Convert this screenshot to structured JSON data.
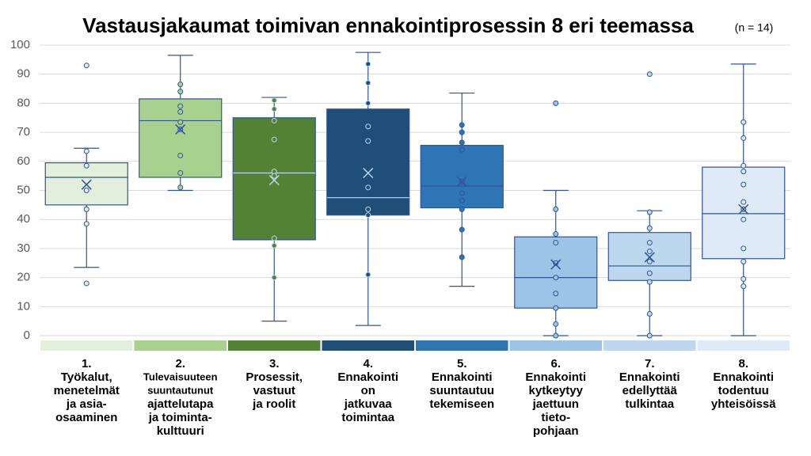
{
  "chart_data": {
    "type": "box",
    "title": "Vastausjakaumat toimivan ennakointiprosessin 8 eri teemassa",
    "subtitle": "(n = 14)",
    "categories": [
      [
        "1.",
        "Työkalut,",
        "menetelmät",
        "ja asia-",
        "osaaminen"
      ],
      [
        "2.",
        "Tulevaisuuteen",
        "suuntautunut",
        "ajattelutapa",
        "ja toiminta-",
        "kulttuuri"
      ],
      [
        "3.",
        "Prosessit,",
        "vastuut",
        "ja roolit"
      ],
      [
        "4.",
        "Ennakointi",
        "on",
        "jatkuvaa",
        "toimintaa"
      ],
      [
        "5.",
        "Ennakointi",
        "suuntautuu",
        "tekemiseen"
      ],
      [
        "6.",
        "Ennakointi",
        "kytkeytyy",
        "jaettuun",
        "tieto-",
        "pohjaan"
      ],
      [
        "7.",
        "Ennakointi",
        "edellyttää",
        "tulkintaa"
      ],
      [
        "8.",
        "Ennakointi",
        "todentuu",
        "yhteisöissä"
      ]
    ],
    "boxes": [
      {
        "min": 23.5,
        "q1": 45,
        "median": 54.5,
        "q3": 59.5,
        "max": 64.5,
        "mean": 52,
        "color": "#e2efda",
        "points": [
          93,
          63.5,
          58.5,
          50,
          43.5,
          38.5,
          18
        ]
      },
      {
        "min": 50,
        "q1": 54.5,
        "median": 74,
        "q3": 81.5,
        "max": 96.5,
        "mean": 71,
        "color": "#a9d18e",
        "points": [
          86.5,
          84,
          79,
          77,
          73.5,
          71,
          62,
          56,
          51
        ]
      },
      {
        "min": 5,
        "q1": 33,
        "median": 56,
        "q3": 75,
        "max": 82,
        "mean": 53.5,
        "color": "#548235",
        "points": [
          81,
          78,
          74,
          67.5,
          56.5,
          55,
          33.5,
          31,
          20
        ]
      },
      {
        "min": 3.5,
        "q1": 41.5,
        "median": 47.5,
        "q3": 78,
        "max": 97.5,
        "mean": 56,
        "color": "#1f4e79",
        "points": [
          93.5,
          87,
          80,
          72,
          67,
          51,
          43.5,
          41.5,
          21
        ]
      },
      {
        "min": 17,
        "q1": 44,
        "median": 51.5,
        "q3": 65.5,
        "max": 83.5,
        "mean": 53,
        "color": "#2e75b6",
        "points": [
          72.5,
          70,
          66.5,
          64,
          53,
          49,
          46.5,
          43.5,
          36.5,
          27
        ]
      },
      {
        "min": 0,
        "q1": 9.5,
        "median": 20,
        "q3": 34,
        "max": 50,
        "mean": 24.5,
        "color": "#9dc3e6",
        "points": [
          80,
          43.5,
          35,
          32,
          25,
          20,
          14.5,
          9.5,
          4,
          0
        ]
      },
      {
        "min": 0,
        "q1": 19,
        "median": 24,
        "q3": 35.5,
        "max": 43,
        "mean": 27,
        "color": "#bdd7ee",
        "points": [
          90,
          42.5,
          37,
          32,
          29,
          25.5,
          21.5,
          18.5,
          7.5,
          0
        ]
      },
      {
        "min": 0,
        "q1": 26.5,
        "median": 42,
        "q3": 58,
        "max": 93.5,
        "mean": 43.5,
        "color": "#deebf7",
        "points": [
          73.5,
          68,
          58.5,
          56.5,
          52,
          46,
          43.5,
          40,
          30,
          25.5,
          19.5,
          17
        ]
      }
    ],
    "ylim": [
      0,
      100
    ],
    "yticks": [
      0,
      10,
      20,
      30,
      40,
      50,
      60,
      70,
      80,
      90,
      100
    ],
    "grid": true
  }
}
